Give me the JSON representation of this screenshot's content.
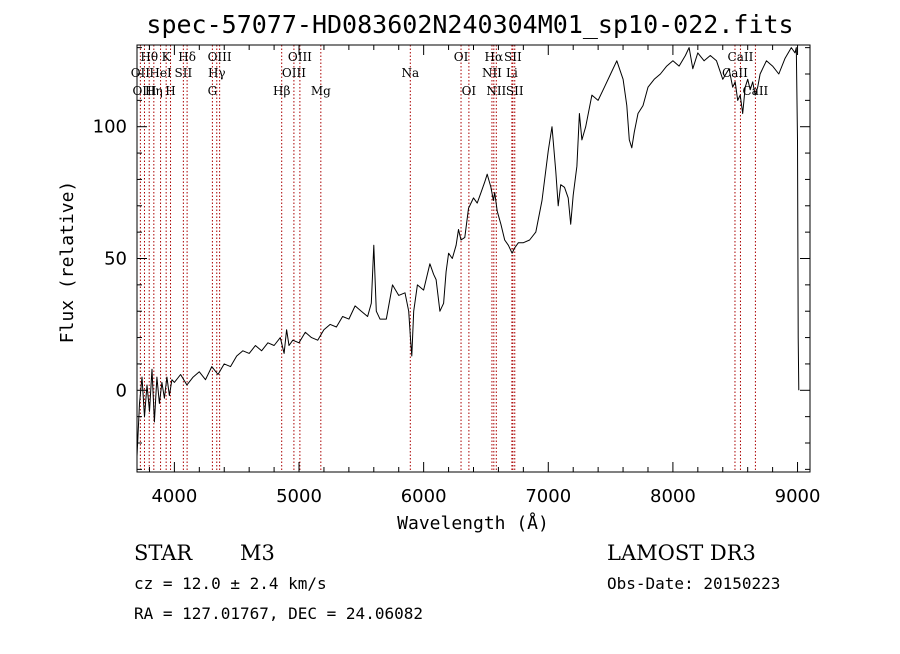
{
  "header": {
    "title": "spec-57077-HD083602N240304M01_sp10-022.fits"
  },
  "info": {
    "object_class": "STAR",
    "subclass": "M3",
    "survey": "LAMOST DR3",
    "redshift": "cz = 12.0 ± 2.4 km/s",
    "obs_date": "Obs-Date: 20150223",
    "coordinates": "RA = 127.01767, DEC =  24.06082"
  },
  "chart_data": {
    "type": "line",
    "title": "spec-57077-HD083602N240304M01_sp10-022.fits",
    "xlabel": "Wavelength (Å)",
    "ylabel": "Flux (relative)",
    "xlim": [
      3700,
      9100
    ],
    "ylim": [
      -31,
      131
    ],
    "xticks": [
      4000,
      5000,
      6000,
      7000,
      8000,
      9000
    ],
    "yticks": [
      0,
      50,
      100
    ],
    "xminor_step": 200,
    "yminor_step": 10,
    "series": [
      {
        "name": "flux",
        "x": [
          3700,
          3720,
          3740,
          3760,
          3780,
          3800,
          3820,
          3840,
          3860,
          3880,
          3900,
          3920,
          3940,
          3960,
          3980,
          4000,
          4050,
          4100,
          4150,
          4200,
          4250,
          4300,
          4350,
          4400,
          4450,
          4500,
          4550,
          4600,
          4650,
          4700,
          4750,
          4800,
          4850,
          4880,
          4900,
          4920,
          4950,
          5000,
          5050,
          5100,
          5150,
          5200,
          5250,
          5300,
          5350,
          5400,
          5450,
          5500,
          5550,
          5580,
          5600,
          5620,
          5650,
          5700,
          5750,
          5800,
          5850,
          5880,
          5895,
          5905,
          5920,
          5950,
          6000,
          6050,
          6080,
          6100,
          6130,
          6160,
          6180,
          6200,
          6230,
          6260,
          6280,
          6300,
          6330,
          6360,
          6400,
          6430,
          6460,
          6490,
          6510,
          6540,
          6560,
          6570,
          6590,
          6620,
          6650,
          6680,
          6710,
          6730,
          6760,
          6800,
          6850,
          6900,
          6950,
          7000,
          7030,
          7060,
          7080,
          7100,
          7130,
          7160,
          7180,
          7200,
          7230,
          7250,
          7270,
          7300,
          7350,
          7400,
          7450,
          7500,
          7550,
          7600,
          7630,
          7650,
          7670,
          7690,
          7720,
          7760,
          7800,
          7850,
          7900,
          7950,
          8000,
          8050,
          8100,
          8130,
          8160,
          8200,
          8250,
          8300,
          8350,
          8400,
          8450,
          8480,
          8500,
          8520,
          8540,
          8560,
          8580,
          8600,
          8620,
          8640,
          8660,
          8680,
          8700,
          8750,
          8800,
          8850,
          8900,
          8950,
          8980,
          8990,
          9000,
          9005,
          9010
        ],
        "y": [
          -25,
          -5,
          5,
          -10,
          2,
          -8,
          8,
          -12,
          5,
          -5,
          3,
          -3,
          5,
          -2,
          4,
          3,
          6,
          2,
          5,
          7,
          4,
          9,
          6,
          10,
          9,
          13,
          15,
          14,
          17,
          15,
          18,
          17,
          20,
          14,
          23,
          17,
          19,
          18,
          22,
          20,
          19,
          23,
          25,
          24,
          28,
          27,
          32,
          30,
          28,
          33,
          55,
          30,
          27,
          27,
          40,
          36,
          37,
          30,
          19,
          13,
          30,
          40,
          38,
          48,
          44,
          42,
          30,
          33,
          45,
          52,
          50,
          55,
          61,
          57,
          58,
          69,
          73,
          71,
          75,
          79,
          82,
          77,
          72,
          75,
          68,
          63,
          57,
          55,
          52,
          54,
          56,
          56,
          57,
          60,
          72,
          91,
          100,
          83,
          70,
          78,
          77,
          73,
          63,
          74,
          85,
          105,
          95,
          100,
          112,
          110,
          115,
          120,
          125,
          118,
          108,
          95,
          92,
          98,
          105,
          108,
          115,
          118,
          120,
          123,
          125,
          123,
          127,
          130,
          122,
          128,
          125,
          127,
          125,
          118,
          122,
          115,
          117,
          110,
          112,
          105,
          115,
          118,
          114,
          117,
          112,
          115,
          120,
          125,
          123,
          120,
          126,
          130,
          128,
          130,
          95,
          20,
          0
        ]
      }
    ],
    "line_markers": [
      {
        "label": "Hθ",
        "x": 3798,
        "row": 1
      },
      {
        "label": "OII",
        "x": 3727,
        "row": 2
      },
      {
        "label": "OIII",
        "x": 3760,
        "row": 3
      },
      {
        "label": "K",
        "x": 3934,
        "row": 1
      },
      {
        "label": "HeI",
        "x": 3889,
        "row": 2
      },
      {
        "label": "Hη",
        "x": 3835,
        "row": 3
      },
      {
        "label": "H",
        "x": 3969,
        "row": 3
      },
      {
        "label": "SII",
        "x": 4072,
        "row": 2
      },
      {
        "label": "Hδ",
        "x": 4102,
        "row": 1
      },
      {
        "label": "OIII",
        "x": 4363,
        "row": 1
      },
      {
        "label": "Hγ",
        "x": 4340,
        "row": 2
      },
      {
        "label": "G",
        "x": 4305,
        "row": 3
      },
      {
        "label": "OIII",
        "x": 5007,
        "row": 1
      },
      {
        "label": "OIII",
        "x": 4959,
        "row": 2
      },
      {
        "label": "Hβ",
        "x": 4861,
        "row": 3
      },
      {
        "label": "Mg",
        "x": 5175,
        "row": 3
      },
      {
        "label": "Na",
        "x": 5893,
        "row": 2
      },
      {
        "label": "OI",
        "x": 6300,
        "row": 1
      },
      {
        "label": "OI",
        "x": 6363,
        "row": 3
      },
      {
        "label": "Hα",
        "x": 6563,
        "row": 1
      },
      {
        "label": "SII",
        "x": 6716,
        "row": 1
      },
      {
        "label": "NII",
        "x": 6548,
        "row": 2
      },
      {
        "label": "Li",
        "x": 6708,
        "row": 2
      },
      {
        "label": "NII",
        "x": 6583,
        "row": 3
      },
      {
        "label": "SII",
        "x": 6731,
        "row": 3
      },
      {
        "label": "CaII",
        "x": 8542,
        "row": 1
      },
      {
        "label": "CaII",
        "x": 8498,
        "row": 2
      },
      {
        "label": "CaII",
        "x": 8662,
        "row": 3
      }
    ],
    "marker_color": "#aa0000"
  }
}
